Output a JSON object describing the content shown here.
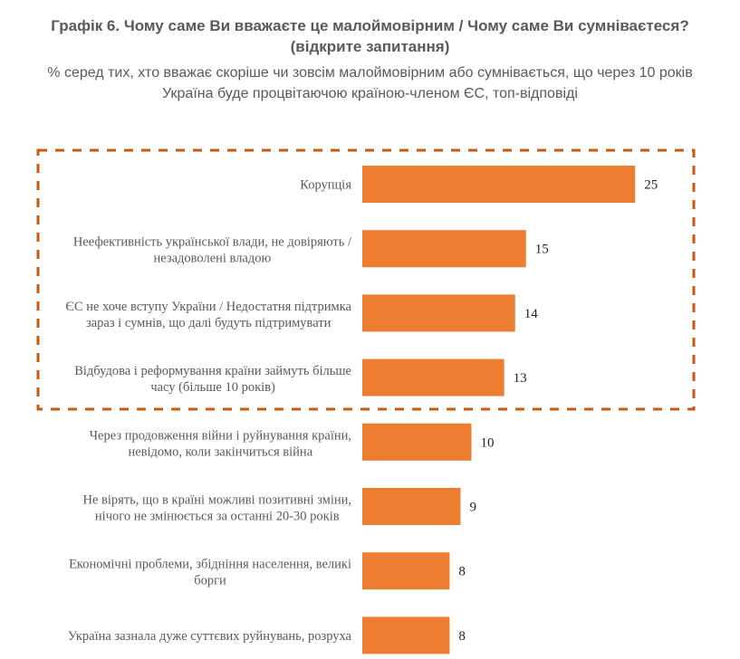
{
  "chart_data": {
    "type": "bar",
    "orientation": "horizontal",
    "title": "Графік 6. Чому саме Ви вважаєте це малоймовірним / Чому саме Ви сумніваєтеся?",
    "title_line2": "(відкрите запитання)",
    "subtitle": "% серед тих, хто вважає скоріше чи зовсім малоймовірним або сумнівається, що через 10 років",
    "subtitle_line2": "Україна буде процвітаючою країною-членом ЄС, топ-відповіді",
    "categories": [
      [
        "Корупція"
      ],
      [
        "Неефективність української влади, не довіряють /",
        "незадоволені владою"
      ],
      [
        "ЄС не хоче вступу України / Недостатня підтримка",
        "зараз і сумнів, що далі будуть підтримувати"
      ],
      [
        "Відбудова і реформування країни займуть більше",
        "часу (більше 10 років)"
      ],
      [
        "Через продовження війни і руйнування країни,",
        "невідомо, коли закінчиться війна"
      ],
      [
        "Не вірять, що в країні можливі позитивні зміни,",
        "нічого не змінюється за останні 20-30 років"
      ],
      [
        "Економічні проблеми, збідніння населення, великі",
        "борги"
      ],
      [
        "Україна зазнала дуже суттєвих руйнувань, розруха"
      ]
    ],
    "values": [
      25,
      15,
      14,
      13,
      10,
      9,
      8,
      8
    ],
    "highlighted_top": 4,
    "colors": {
      "bar": "#ED7D31",
      "highlight_frame": "#C55A11"
    },
    "grid": false,
    "axes_visible": false
  }
}
